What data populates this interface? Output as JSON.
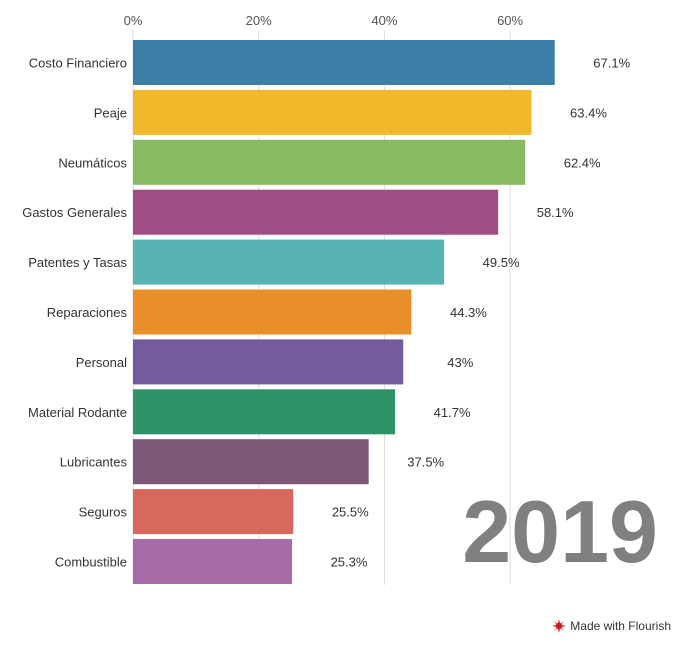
{
  "chart_data": {
    "type": "bar",
    "orientation": "horizontal",
    "title": "",
    "xlabel": "",
    "ylabel": "",
    "xlim": [
      0,
      70
    ],
    "x_ticks": [
      0,
      20,
      40,
      60
    ],
    "x_tick_labels": [
      "0%",
      "20%",
      "40%",
      "60%"
    ],
    "grid": true,
    "year_label": "2019",
    "categories": [
      "Costo Financiero",
      "Peaje",
      "Neumáticos",
      "Gastos Generales",
      "Patentes y Tasas",
      "Reparaciones",
      "Personal",
      "Material Rodante",
      "Lubricantes",
      "Seguros",
      "Combustible"
    ],
    "values": [
      67.1,
      63.4,
      62.4,
      58.1,
      49.5,
      44.3,
      43,
      41.7,
      37.5,
      25.5,
      25.3
    ],
    "value_labels": [
      "67.1%",
      "63.4%",
      "62.4%",
      "58.1%",
      "49.5%",
      "44.3%",
      "43%",
      "41.7%",
      "37.5%",
      "25.5%",
      "25.3%"
    ],
    "colors": [
      "#3b7ea6",
      "#f0b82a",
      "#87bb62",
      "#a04d83",
      "#58b3b3",
      "#e88f2a",
      "#735b9f",
      "#2d9467",
      "#7d5777",
      "#d9685c",
      "#a66ca8"
    ]
  },
  "footer": {
    "credit": "Made with Flourish",
    "credit_icon": "flourish-burst-icon",
    "credit_color": "#d0191a"
  }
}
